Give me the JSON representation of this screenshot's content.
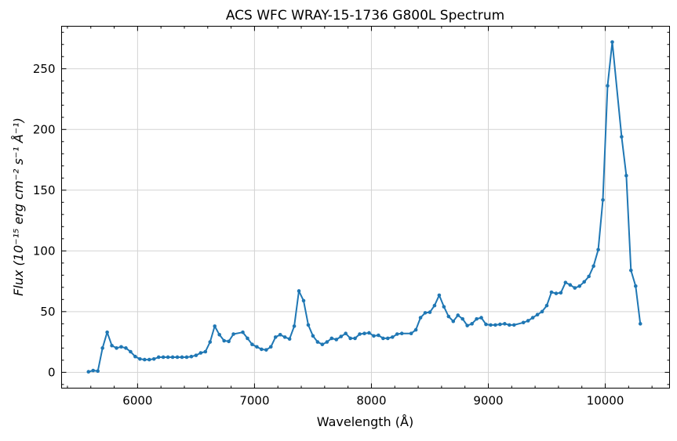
{
  "chart_data": {
    "type": "line",
    "title": "ACS WFC WRAY-15-1736 G800L Spectrum",
    "xlabel": "Wavelength (Å)",
    "ylabel": "Flux (10⁻¹⁵ erg cm⁻² s⁻¹ Å⁻¹)",
    "xlim": [
      5350,
      10550
    ],
    "ylim": [
      -13,
      285
    ],
    "xticks": [
      6000,
      7000,
      8000,
      9000,
      10000
    ],
    "yticks": [
      0,
      50,
      100,
      150,
      200,
      250
    ],
    "grid": true,
    "color": "#1f77b4",
    "x": [
      5580,
      5620,
      5660,
      5700,
      5740,
      5780,
      5820,
      5860,
      5900,
      5940,
      5980,
      6020,
      6060,
      6100,
      6140,
      6180,
      6220,
      6260,
      6300,
      6340,
      6380,
      6420,
      6460,
      6500,
      6540,
      6580,
      6620,
      6660,
      6700,
      6740,
      6780,
      6820,
      6900,
      6940,
      6980,
      7020,
      7060,
      7100,
      7140,
      7180,
      7220,
      7260,
      7300,
      7340,
      7380,
      7420,
      7460,
      7500,
      7540,
      7580,
      7620,
      7660,
      7700,
      7740,
      7780,
      7820,
      7860,
      7900,
      7940,
      7980,
      8020,
      8060,
      8100,
      8140,
      8180,
      8220,
      8260,
      8340,
      8380,
      8420,
      8460,
      8500,
      8540,
      8580,
      8620,
      8660,
      8700,
      8740,
      8780,
      8820,
      8860,
      8900,
      8940,
      8980,
      9020,
      9060,
      9100,
      9140,
      9180,
      9220,
      9300,
      9340,
      9380,
      9420,
      9460,
      9500,
      9540,
      9580,
      9620,
      9660,
      9700,
      9740,
      9780,
      9820,
      9860,
      9900,
      9940,
      9980,
      10020,
      10060,
      10140,
      10180,
      10220,
      10260,
      10300
    ],
    "y": [
      0.5,
      1.5,
      1,
      20,
      33,
      22,
      20,
      21,
      20,
      17,
      13,
      11,
      10.5,
      10.5,
      11,
      12.5,
      12.5,
      12.5,
      12.5,
      12.5,
      12.5,
      12.5,
      13,
      14,
      16,
      17,
      25,
      38,
      31,
      26,
      25.5,
      31.5,
      33,
      28,
      23,
      21,
      19,
      18.5,
      21,
      29,
      31,
      29,
      27.5,
      38,
      67,
      59,
      39,
      30,
      25,
      23,
      25,
      28,
      27,
      29.5,
      32,
      28,
      28,
      31.5,
      32,
      32.5,
      30,
      30.5,
      28,
      28,
      29,
      31.5,
      32,
      32,
      35,
      45,
      49,
      49.5,
      55,
      63.5,
      54,
      46,
      42,
      47,
      44,
      38.5,
      40,
      44,
      45,
      39.5,
      39,
      39,
      39.5,
      40,
      39,
      39,
      41,
      42.5,
      45,
      47.5,
      50,
      55,
      66,
      65,
      65.5,
      74,
      72,
      69.5,
      71,
      74.5,
      79,
      87.5,
      101,
      142,
      236,
      272,
      194,
      162,
      84,
      71,
      40
    ]
  }
}
